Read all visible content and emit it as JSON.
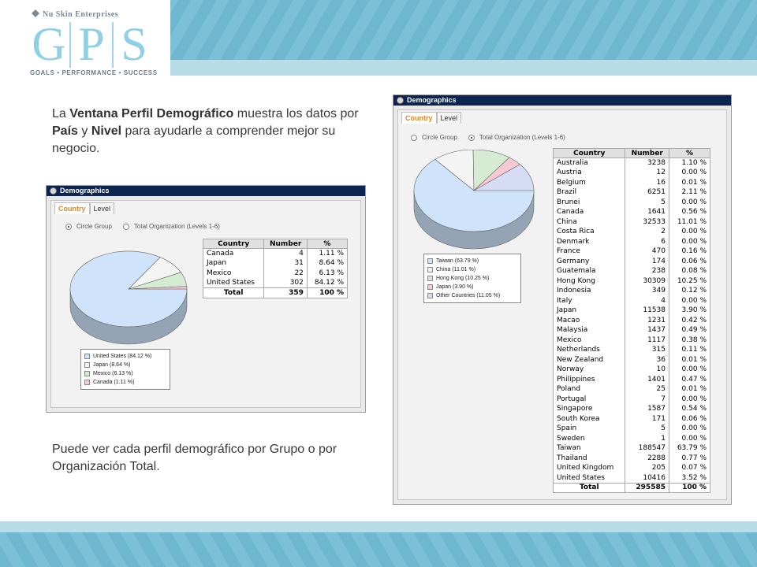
{
  "header": {
    "company": "Nu Skin Enterprises",
    "logo_letters": [
      "G",
      "P",
      "S"
    ],
    "tagline": "GOALS • PERFORMANCE • SUCCESS"
  },
  "intro": {
    "p1": "La ",
    "b1": "Ventana Perfil Demográfico",
    "p2": " muestra los datos por ",
    "b2": "País",
    "p3": " y ",
    "b3": "Nivel",
    "p4": " para ayudarle a comprender mejor su negocio."
  },
  "outro": "Puede ver cada perfil demográfico por Grupo o por Organización Total.",
  "colors": {
    "title_bar": "#0d2451",
    "active_tab": "#e4871d",
    "pie_blue": "#cfe4fb",
    "pie_white": "#f4f4f4",
    "pie_green": "#d6ecd2",
    "pie_pink": "#f6c9d3",
    "pie_lavender": "#d7dcf5"
  },
  "window_small": {
    "title": "Demographics",
    "tabs": [
      "Country",
      "Level"
    ],
    "active_tab": "Country",
    "radio_circle": "Circle Group",
    "radio_total": "Total Organization (Levels 1-6)",
    "selected_radio": "Circle Group",
    "headers": [
      "Country",
      "Number",
      "%"
    ],
    "rows": [
      [
        "Canada",
        "4",
        "1.11 %"
      ],
      [
        "Japan",
        "31",
        "8.64 %"
      ],
      [
        "Mexico",
        "22",
        "6.13 %"
      ],
      [
        "United States",
        "302",
        "84.12 %"
      ]
    ],
    "total": [
      "Total",
      "359",
      "100 %"
    ],
    "legend": [
      "United States (84.12 %)",
      "Japan (8.64 %)",
      "Mexico (6.13 %)",
      "Canada (1.11 %)"
    ]
  },
  "window_large": {
    "title": "Demographics",
    "tabs": [
      "Country",
      "Level"
    ],
    "active_tab": "Country",
    "radio_circle": "Circle Group",
    "radio_total": "Total Organization (Levels 1-6)",
    "selected_radio": "Total Organization (Levels 1-6)",
    "headers": [
      "Country",
      "Number",
      "%"
    ],
    "rows": [
      [
        "Australia",
        "3238",
        "1.10 %"
      ],
      [
        "Austria",
        "12",
        "0.00 %"
      ],
      [
        "Belgium",
        "16",
        "0.01 %"
      ],
      [
        "Brazil",
        "6251",
        "2.11 %"
      ],
      [
        "Brunei",
        "5",
        "0.00 %"
      ],
      [
        "Canada",
        "1641",
        "0.56 %"
      ],
      [
        "China",
        "32533",
        "11.01 %"
      ],
      [
        "Costa Rica",
        "2",
        "0.00 %"
      ],
      [
        "Denmark",
        "6",
        "0.00 %"
      ],
      [
        "France",
        "470",
        "0.16 %"
      ],
      [
        "Germany",
        "174",
        "0.06 %"
      ],
      [
        "Guatemala",
        "238",
        "0.08 %"
      ],
      [
        "Hong Kong",
        "30309",
        "10.25 %"
      ],
      [
        "Indonesia",
        "349",
        "0.12 %"
      ],
      [
        "Italy",
        "4",
        "0.00 %"
      ],
      [
        "Japan",
        "11538",
        "3.90 %"
      ],
      [
        "Macao",
        "1231",
        "0.42 %"
      ],
      [
        "Malaysia",
        "1437",
        "0.49 %"
      ],
      [
        "Mexico",
        "1117",
        "0.38 %"
      ],
      [
        "Netherlands",
        "315",
        "0.11 %"
      ],
      [
        "New Zealand",
        "36",
        "0.01 %"
      ],
      [
        "Norway",
        "10",
        "0.00 %"
      ],
      [
        "Philippines",
        "1401",
        "0.47 %"
      ],
      [
        "Poland",
        "25",
        "0.01 %"
      ],
      [
        "Portugal",
        "7",
        "0.00 %"
      ],
      [
        "Singapore",
        "1587",
        "0.54 %"
      ],
      [
        "South Korea",
        "171",
        "0.06 %"
      ],
      [
        "Spain",
        "5",
        "0.00 %"
      ],
      [
        "Sweden",
        "1",
        "0.00 %"
      ],
      [
        "Taiwan",
        "188547",
        "63.79 %"
      ],
      [
        "Thailand",
        "2288",
        "0.77 %"
      ],
      [
        "United Kingdom",
        "205",
        "0.07 %"
      ],
      [
        "United States",
        "10416",
        "3.52 %"
      ]
    ],
    "total": [
      "Total",
      "295585",
      "100 %"
    ],
    "legend": [
      "Taiwan (63.79 %)",
      "China (11.01 %)",
      "Hong Kong (10.25 %)",
      "Japan (3.90 %)",
      "Other Countries (11.05 %)"
    ]
  },
  "chart_data": [
    {
      "type": "pie",
      "title": "",
      "categories": [
        "United States",
        "Japan",
        "Mexico",
        "Canada"
      ],
      "values": [
        84.12,
        8.64,
        6.13,
        1.11
      ],
      "colors": [
        "#cfe4fb",
        "#f4f4f4",
        "#d6ecd2",
        "#f6c9d3"
      ],
      "legend": "bottom"
    },
    {
      "type": "pie",
      "title": "",
      "categories": [
        "Taiwan",
        "China",
        "Hong Kong",
        "Japan",
        "Other Countries"
      ],
      "values": [
        63.79,
        11.01,
        10.25,
        3.9,
        11.05
      ],
      "colors": [
        "#cfe4fb",
        "#f4f4f4",
        "#d6ecd2",
        "#f6c9d3",
        "#d7dcf5"
      ],
      "legend": "bottom"
    }
  ]
}
